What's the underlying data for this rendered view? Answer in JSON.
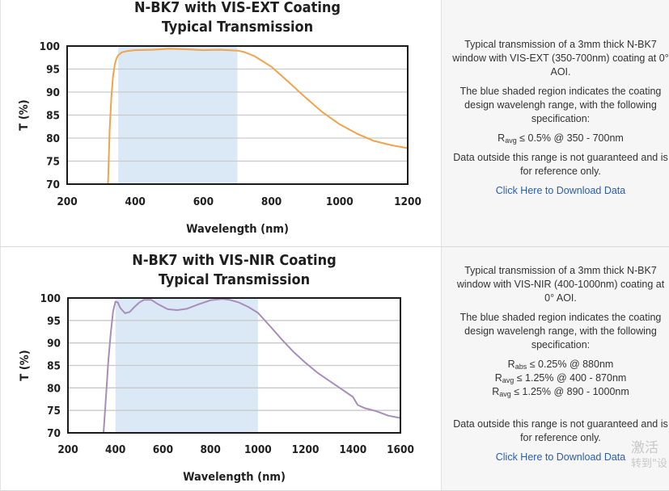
{
  "panels": [
    {
      "chart": {
        "type": "line",
        "title_line1": "N-BK7 with VIS-EXT Coating",
        "title_line2": "Typical Transmission",
        "xlabel": "Wavelength (nm)",
        "ylabel": "T (%)",
        "xlim": [
          200,
          1200
        ],
        "ylim": [
          70,
          100
        ],
        "xticks": [
          200,
          400,
          600,
          800,
          1000,
          1200
        ],
        "yticks": [
          70,
          75,
          80,
          85,
          90,
          95,
          100
        ],
        "grid": "horizontal",
        "shaded_region": [
          350,
          700
        ],
        "line_color": "#f0a34a",
        "shade_color": "#dbe9f6",
        "series": [
          {
            "x": [
              320,
              325,
              330,
              335,
              340,
              345,
              350,
              360,
              375,
              400,
              450,
              500,
              550,
              600,
              650,
              700,
              720,
              750,
              800,
              850,
              900,
              950,
              1000,
              1050,
              1100,
              1150,
              1200
            ],
            "values": [
              70,
              82,
              89,
              93.5,
              96,
              97.3,
              98,
              98.6,
              98.9,
              99.1,
              99.2,
              99.4,
              99.3,
              99.1,
              99.2,
              99.0,
              98.7,
              97.8,
              95.5,
              92.2,
              88.8,
              85.6,
              83.0,
              81.0,
              79.4,
              78.5,
              77.8
            ]
          }
        ]
      },
      "desc": {
        "p1": "Typical transmission of a 3mm thick N-BK7 window with VIS-EXT (350-700nm) coating at 0° AOI.",
        "p2": "The blue shaded region indicates the coating design wavelengh range, with the following specification:",
        "specs": [
          {
            "sym": "R",
            "sub": "avg",
            "rest": " ≤ 0.5% @ 350 - 700nm"
          }
        ],
        "p3": "Data outside this range is not guaranteed and is for reference only.",
        "link": "Click Here to Download Data"
      }
    },
    {
      "chart": {
        "type": "line",
        "title_line1": "N-BK7 with VIS-NIR Coating",
        "title_line2": "Typical Transmission",
        "xlabel": "Wavelength (nm)",
        "ylabel": "T (%)",
        "xlim": [
          200,
          1600
        ],
        "ylim": [
          70,
          100
        ],
        "xticks": [
          200,
          400,
          600,
          800,
          1000,
          1200,
          1400,
          1600
        ],
        "yticks": [
          70,
          75,
          80,
          85,
          90,
          95,
          100
        ],
        "grid": "horizontal",
        "shaded_region": [
          400,
          1000
        ],
        "line_color": "#a88dbb",
        "shade_color": "#dbe9f6",
        "series": [
          {
            "x": [
              350,
              360,
              370,
              380,
              390,
              400,
              410,
              420,
              440,
              460,
              480,
              500,
              520,
              550,
              580,
              620,
              660,
              700,
              750,
              800,
              850,
              880,
              920,
              960,
              1000,
              1050,
              1100,
              1150,
              1200,
              1250,
              1300,
              1350,
              1400,
              1420,
              1450,
              1500,
              1550,
              1600
            ],
            "values": [
              70,
              78,
              86,
              92,
              97,
              99.2,
              99.0,
              97.8,
              96.6,
              96.9,
              98.0,
              99.0,
              99.6,
              99.6,
              98.6,
              97.5,
              97.3,
              97.6,
              98.6,
              99.5,
              99.8,
              99.6,
              99.0,
              98.0,
              96.7,
              93.8,
              90.8,
              88.0,
              85.6,
              83.4,
              81.6,
              79.8,
              78.0,
              76.2,
              75.5,
              74.8,
              73.8,
              73.3
            ]
          }
        ]
      },
      "desc": {
        "p1": "Typical transmission of a 3mm thick N-BK7 window with VIS-NIR (400-1000nm) coating at 0° AOI.",
        "p2": "The blue shaded region indicates the coating design wavelengh range, with the following specification:",
        "specs": [
          {
            "sym": "R",
            "sub": "abs",
            "rest": " ≤ 0.25% @ 880nm"
          },
          {
            "sym": "R",
            "sub": "avg",
            "rest": " ≤ 1.25% @ 400 - 870nm"
          },
          {
            "sym": "R",
            "sub": "avg",
            "rest": " ≤ 1.25% @ 890 - 1000nm"
          }
        ],
        "p3": "Data outside this range is not guaranteed and is for reference only.",
        "link": "Click Here to Download Data"
      }
    }
  ],
  "watermark": {
    "line1": "激活",
    "line2": "转到\"设"
  }
}
